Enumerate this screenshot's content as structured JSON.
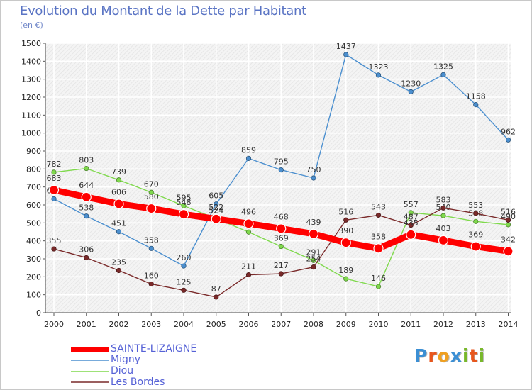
{
  "header": {
    "title": "Evolution du Montant de la Dette par Habitant",
    "subtitle": "(en €)"
  },
  "brand": {
    "text": "Proxiti",
    "letters": [
      "P",
      "r",
      "o",
      "x",
      "i",
      "t",
      "i"
    ],
    "colors": [
      "#3b8fd4",
      "#e8561c",
      "#f0a020",
      "#3b8fd4",
      "#78b82a",
      "#e8561c",
      "#78b82a"
    ]
  },
  "chart_data": {
    "type": "line",
    "x": [
      "2000",
      "2001",
      "2002",
      "2003",
      "2004",
      "2005",
      "2006",
      "2007",
      "2008",
      "2009",
      "2010",
      "2011",
      "2012",
      "2013",
      "2014"
    ],
    "ylim": [
      0,
      1500
    ],
    "yticks": [
      0,
      100,
      200,
      300,
      400,
      500,
      600,
      700,
      800,
      900,
      1000,
      1100,
      1200,
      1300,
      1400,
      1500
    ],
    "grid": true,
    "legend_position": "bottom-left",
    "series": [
      {
        "name": "SAINTE-LIZAIGNE",
        "color": "#ff0000",
        "values": [
          683,
          644,
          606,
          580,
          548,
          522,
          496,
          468,
          439,
          390,
          358,
          435,
          403,
          369,
          342
        ]
      },
      {
        "name": "Migny",
        "color": "#4b8fcf",
        "values": [
          634,
          538,
          451,
          358,
          260,
          605,
          859,
          795,
          750,
          1437,
          1323,
          1230,
          1325,
          1158,
          962
        ]
      },
      {
        "name": "Diou",
        "color": "#7fd94c",
        "values": [
          782,
          803,
          739,
          670,
          595,
          524,
          449,
          369,
          291,
          189,
          146,
          557,
          540,
          508,
          490
        ]
      },
      {
        "name": "Les Bordes",
        "color": "#7a2a2a",
        "values": [
          355,
          306,
          235,
          160,
          125,
          87,
          211,
          217,
          254,
          516,
          543,
          487,
          583,
          553,
          516
        ]
      }
    ]
  }
}
